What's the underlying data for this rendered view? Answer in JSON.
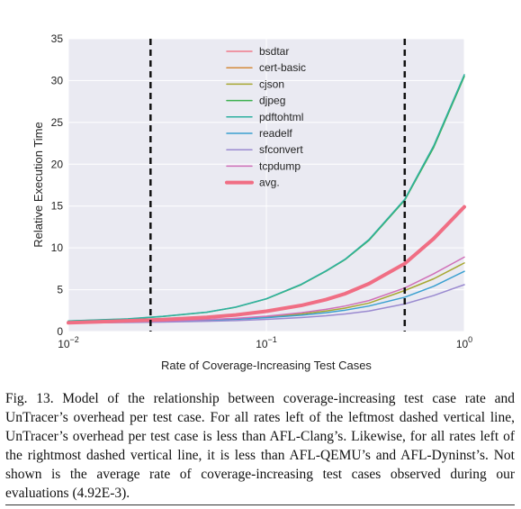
{
  "chart_data": {
    "type": "line",
    "xscale": "log",
    "xlim": [
      0.01,
      1
    ],
    "ylim": [
      0,
      35
    ],
    "xlabel": "Rate of Coverage-Increasing Test Cases",
    "ylabel": "Relative Execution Time",
    "x_ticks": [
      0.01,
      0.1,
      1
    ],
    "x_tick_labels": [
      {
        "base": "10",
        "exp": "−2"
      },
      {
        "base": "10",
        "exp": "−1"
      },
      {
        "base": "10",
        "exp": "0"
      }
    ],
    "y_ticks": [
      0,
      5,
      10,
      15,
      20,
      25,
      30,
      35
    ],
    "y_tick_labels": [
      "0",
      "5",
      "10",
      "15",
      "20",
      "25",
      "30",
      "35"
    ],
    "grid": true,
    "legend_position": "top-center",
    "vertical_dashed_lines": [
      0.026,
      0.5
    ],
    "x": [
      0.01,
      0.02,
      0.03,
      0.05,
      0.07,
      0.1,
      0.15,
      0.2,
      0.25,
      0.33,
      0.5,
      0.7,
      1.0
    ],
    "series": [
      {
        "name": "bsdtar",
        "color": "#f07a8a",
        "width": 1.5,
        "values": [
          1.05,
          1.27,
          1.42,
          1.7,
          1.98,
          2.4,
          3.1,
          3.8,
          4.5,
          5.7,
          8.1,
          11.0,
          14.9
        ]
      },
      {
        "name": "cert-basic",
        "color": "#d48a3a",
        "width": 1.5,
        "values": [
          1.05,
          1.3,
          1.43,
          1.72,
          2.0,
          2.42,
          3.15,
          3.85,
          4.55,
          5.75,
          8.2,
          11.2,
          15.0
        ]
      },
      {
        "name": "cjson",
        "color": "#a7a732",
        "width": 1.5,
        "values": [
          1.02,
          1.15,
          1.23,
          1.38,
          1.52,
          1.75,
          2.1,
          2.45,
          2.8,
          3.4,
          4.9,
          6.3,
          8.2
        ]
      },
      {
        "name": "djpeg",
        "color": "#3db04f",
        "width": 1.5,
        "values": [
          1.25,
          1.5,
          1.8,
          2.3,
          2.9,
          3.9,
          5.6,
          7.2,
          8.6,
          10.9,
          15.7,
          22.0,
          30.5
        ]
      },
      {
        "name": "pdftohtml",
        "color": "#2fb0a0",
        "width": 1.5,
        "values": [
          1.26,
          1.52,
          1.82,
          2.32,
          2.92,
          3.92,
          5.65,
          7.25,
          8.65,
          11.0,
          15.8,
          22.2,
          30.7
        ]
      },
      {
        "name": "readelf",
        "color": "#3aa0d0",
        "width": 1.5,
        "values": [
          1.02,
          1.12,
          1.2,
          1.33,
          1.46,
          1.65,
          1.95,
          2.25,
          2.55,
          3.05,
          4.1,
          5.4,
          7.2
        ]
      },
      {
        "name": "sfconvert",
        "color": "#9a8ad0",
        "width": 1.5,
        "values": [
          1.01,
          1.08,
          1.13,
          1.22,
          1.31,
          1.45,
          1.67,
          1.88,
          2.1,
          2.45,
          3.3,
          4.3,
          5.6
        ]
      },
      {
        "name": "tcpdump",
        "color": "#d070b8",
        "width": 1.5,
        "values": [
          1.02,
          1.16,
          1.25,
          1.42,
          1.58,
          1.83,
          2.25,
          2.65,
          3.05,
          3.7,
          5.2,
          6.9,
          8.9
        ]
      },
      {
        "name": "avg.",
        "color": "#f06e84",
        "width": 4,
        "values": [
          1.05,
          1.28,
          1.43,
          1.7,
          1.98,
          2.42,
          3.12,
          3.82,
          4.52,
          5.72,
          8.12,
          11.1,
          14.9
        ]
      }
    ]
  },
  "caption": {
    "label": "Fig. 13.",
    "text": "Model of the relationship between coverage-increasing test case rate and UnTracer’s overhead per test case. For all rates left of the leftmost dashed vertical line, UnTracer’s overhead per test case is less than AFL-Clang’s. Likewise, for all rates left of the rightmost dashed vertical line, it is less than AFL-QEMU’s and AFL-Dyninst’s. Not shown is the average rate of coverage-increasing test cases observed during our evaluations (4.92E-3)."
  }
}
